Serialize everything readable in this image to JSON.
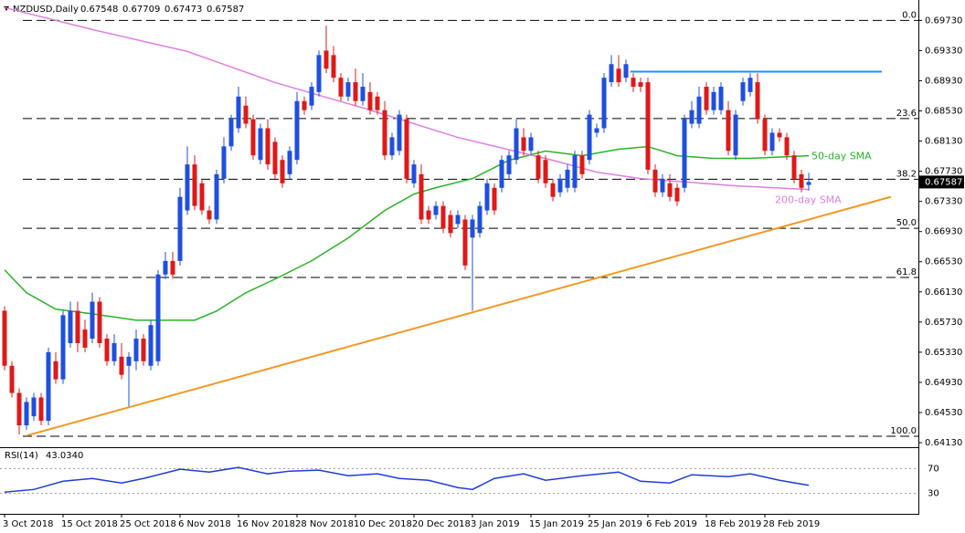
{
  "chart_data": {
    "type": "candlestick",
    "symbol": "NZDUSD,Daily",
    "up_color": "#1f4fe0",
    "down_color": "#e01818",
    "xlim": [
      -0.625,
      125
    ],
    "ylim": [
      0.6407,
      0.6994
    ],
    "xticks": [
      {
        "value": 0,
        "label": "3 Oct 2018"
      },
      {
        "value": 8,
        "label": "15 Oct 2018"
      },
      {
        "value": 16,
        "label": "25 Oct 2018"
      },
      {
        "value": 24,
        "label": "6 Nov 2018"
      },
      {
        "value": 32,
        "label": "16 Nov 2018"
      },
      {
        "value": 40,
        "label": "28 Nov 2018"
      },
      {
        "value": 48,
        "label": "10 Dec 2018"
      },
      {
        "value": 56,
        "label": "20 Dec 2018"
      },
      {
        "value": 64,
        "label": "3 Jan 2019"
      },
      {
        "value": 72,
        "label": "15 Jan 2019"
      },
      {
        "value": 80,
        "label": "25 Jan 2019"
      },
      {
        "value": 88,
        "label": "6 Feb 2019"
      },
      {
        "value": 96,
        "label": "18 Feb 2019"
      },
      {
        "value": 104,
        "label": "28 Feb 2019"
      }
    ],
    "yticks": [
      {
        "value": 0.6973,
        "label": "0.69730"
      },
      {
        "value": 0.6933,
        "label": "0.69330"
      },
      {
        "value": 0.6893,
        "label": "0.68930"
      },
      {
        "value": 0.6853,
        "label": "0.68530"
      },
      {
        "value": 0.6813,
        "label": "0.68130"
      },
      {
        "value": 0.6773,
        "label": "0.67730"
      },
      {
        "value": 0.6733,
        "label": "0.67330"
      },
      {
        "value": 0.6693,
        "label": "0.66930"
      },
      {
        "value": 0.6653,
        "label": "0.66530"
      },
      {
        "value": 0.6613,
        "label": "0.66130"
      },
      {
        "value": 0.6573,
        "label": "0.65730"
      },
      {
        "value": 0.6533,
        "label": "0.65330"
      },
      {
        "value": 0.6493,
        "label": "0.64930"
      },
      {
        "value": 0.6453,
        "label": "0.64530"
      },
      {
        "value": 0.6413,
        "label": "0.64130"
      }
    ],
    "candles": [
      [
        0.6588,
        0.6594,
        0.6509,
        0.6515
      ],
      [
        0.6515,
        0.6521,
        0.6473,
        0.6479
      ],
      [
        0.6479,
        0.6485,
        0.6424,
        0.6436
      ],
      [
        0.6436,
        0.6473,
        0.643,
        0.6467
      ],
      [
        0.6448,
        0.6479,
        0.6442,
        0.6473
      ],
      [
        0.6473,
        0.6479,
        0.6436,
        0.6442
      ],
      [
        0.6442,
        0.6539,
        0.6436,
        0.6533
      ],
      [
        0.6521,
        0.6533,
        0.6491,
        0.6497
      ],
      [
        0.6497,
        0.6588,
        0.6491,
        0.6582
      ],
      [
        0.6545,
        0.66,
        0.6539,
        0.6588
      ],
      [
        0.6588,
        0.66,
        0.6533,
        0.6545
      ],
      [
        0.6563,
        0.6576,
        0.6533,
        0.6539
      ],
      [
        0.6551,
        0.6612,
        0.6545,
        0.66
      ],
      [
        0.66,
        0.6606,
        0.6539,
        0.6545
      ],
      [
        0.6551,
        0.6557,
        0.6515,
        0.6521
      ],
      [
        0.6521,
        0.6557,
        0.6515,
        0.6545
      ],
      [
        0.6527,
        0.6545,
        0.6497,
        0.6503
      ],
      [
        0.6515,
        0.6533,
        0.6461,
        0.6527
      ],
      [
        0.6521,
        0.6563,
        0.6509,
        0.6551
      ],
      [
        0.6551,
        0.6557,
        0.6515,
        0.6521
      ],
      [
        0.6515,
        0.6576,
        0.6509,
        0.6569
      ],
      [
        0.6521,
        0.6642,
        0.6515,
        0.6636
      ],
      [
        0.6636,
        0.6666,
        0.663,
        0.6654
      ],
      [
        0.6654,
        0.6666,
        0.663,
        0.6636
      ],
      [
        0.6654,
        0.6751,
        0.6648,
        0.6739
      ],
      [
        0.6721,
        0.6806,
        0.6715,
        0.6782
      ],
      [
        0.6782,
        0.6794,
        0.6721,
        0.6727
      ],
      [
        0.6757,
        0.6763,
        0.6715,
        0.6721
      ],
      [
        0.6721,
        0.6727,
        0.6703,
        0.6709
      ],
      [
        0.6709,
        0.6775,
        0.6703,
        0.6769
      ],
      [
        0.6763,
        0.6818,
        0.6757,
        0.6806
      ],
      [
        0.6806,
        0.6848,
        0.68,
        0.6842
      ],
      [
        0.683,
        0.6885,
        0.6824,
        0.6872
      ],
      [
        0.686,
        0.6872,
        0.683,
        0.6836
      ],
      [
        0.6842,
        0.6848,
        0.6788,
        0.6794
      ],
      [
        0.6788,
        0.6836,
        0.6782,
        0.683
      ],
      [
        0.683,
        0.6842,
        0.6775,
        0.6782
      ],
      [
        0.6812,
        0.6818,
        0.6763,
        0.6769
      ],
      [
        0.6788,
        0.6794,
        0.6751,
        0.6757
      ],
      [
        0.6769,
        0.6806,
        0.6763,
        0.68
      ],
      [
        0.6788,
        0.6878,
        0.6782,
        0.6866
      ],
      [
        0.6866,
        0.6872,
        0.6848,
        0.6854
      ],
      [
        0.686,
        0.6891,
        0.6854,
        0.6885
      ],
      [
        0.6878,
        0.6933,
        0.6872,
        0.6927
      ],
      [
        0.6933,
        0.6966,
        0.6903,
        0.6909
      ],
      [
        0.6927,
        0.6939,
        0.6891,
        0.6897
      ],
      [
        0.6897,
        0.6903,
        0.6866,
        0.6872
      ],
      [
        0.6872,
        0.6897,
        0.6866,
        0.6891
      ],
      [
        0.6891,
        0.6909,
        0.686,
        0.6866
      ],
      [
        0.6866,
        0.6903,
        0.686,
        0.6885
      ],
      [
        0.6878,
        0.6891,
        0.6848,
        0.6854
      ],
      [
        0.6872,
        0.6878,
        0.6848,
        0.6854
      ],
      [
        0.6854,
        0.6866,
        0.6788,
        0.6794
      ],
      [
        0.6794,
        0.6824,
        0.6788,
        0.6818
      ],
      [
        0.68,
        0.6854,
        0.6794,
        0.6848
      ],
      [
        0.6842,
        0.6848,
        0.6757,
        0.6763
      ],
      [
        0.6757,
        0.6788,
        0.6751,
        0.6782
      ],
      [
        0.6769,
        0.6782,
        0.6703,
        0.6709
      ],
      [
        0.6721,
        0.6727,
        0.6703,
        0.6709
      ],
      [
        0.6715,
        0.6733,
        0.6709,
        0.6727
      ],
      [
        0.6727,
        0.6733,
        0.6691,
        0.6697
      ],
      [
        0.6715,
        0.6721,
        0.6685,
        0.6691
      ],
      [
        0.6703,
        0.6721,
        0.6697,
        0.6715
      ],
      [
        0.6709,
        0.6715,
        0.6642,
        0.6648
      ],
      [
        0.6685,
        0.6715,
        0.6588,
        0.6709
      ],
      [
        0.6691,
        0.6733,
        0.6685,
        0.6727
      ],
      [
        0.6721,
        0.6763,
        0.6715,
        0.6757
      ],
      [
        0.6751,
        0.6757,
        0.6715,
        0.6721
      ],
      [
        0.6751,
        0.6794,
        0.6745,
        0.6788
      ],
      [
        0.6769,
        0.68,
        0.6763,
        0.6794
      ],
      [
        0.6788,
        0.6842,
        0.6782,
        0.683
      ],
      [
        0.6818,
        0.683,
        0.6794,
        0.68
      ],
      [
        0.68,
        0.6824,
        0.6794,
        0.6818
      ],
      [
        0.6794,
        0.68,
        0.6757,
        0.6763
      ],
      [
        0.6788,
        0.6794,
        0.6751,
        0.6757
      ],
      [
        0.6757,
        0.6763,
        0.6733,
        0.6739
      ],
      [
        0.6745,
        0.6769,
        0.6739,
        0.6763
      ],
      [
        0.6751,
        0.6782,
        0.6745,
        0.6775
      ],
      [
        0.6751,
        0.68,
        0.6745,
        0.6794
      ],
      [
        0.6794,
        0.68,
        0.6763,
        0.6769
      ],
      [
        0.6788,
        0.6854,
        0.6782,
        0.6848
      ],
      [
        0.6824,
        0.6836,
        0.6818,
        0.683
      ],
      [
        0.683,
        0.6903,
        0.6824,
        0.6897
      ],
      [
        0.6891,
        0.6927,
        0.6885,
        0.6915
      ],
      [
        0.6909,
        0.6927,
        0.6885,
        0.6891
      ],
      [
        0.6897,
        0.6921,
        0.6891,
        0.6915
      ],
      [
        0.6897,
        0.6903,
        0.6878,
        0.6885
      ],
      [
        0.6891,
        0.6897,
        0.6878,
        0.6885
      ],
      [
        0.6891,
        0.6897,
        0.6769,
        0.6775
      ],
      [
        0.6775,
        0.6782,
        0.6739,
        0.6745
      ],
      [
        0.6745,
        0.6769,
        0.6739,
        0.6763
      ],
      [
        0.6757,
        0.6769,
        0.6733,
        0.6739
      ],
      [
        0.6751,
        0.6757,
        0.6727,
        0.6733
      ],
      [
        0.6751,
        0.6848,
        0.6745,
        0.6842
      ],
      [
        0.6836,
        0.6866,
        0.683,
        0.6854
      ],
      [
        0.6836,
        0.6885,
        0.683,
        0.6872
      ],
      [
        0.6885,
        0.6891,
        0.6848,
        0.6854
      ],
      [
        0.6854,
        0.6885,
        0.6848,
        0.6878
      ],
      [
        0.6854,
        0.6891,
        0.6848,
        0.6885
      ],
      [
        0.6854,
        0.6866,
        0.6794,
        0.68
      ],
      [
        0.6794,
        0.6854,
        0.6788,
        0.6848
      ],
      [
        0.6866,
        0.6897,
        0.686,
        0.6891
      ],
      [
        0.6878,
        0.6903,
        0.6872,
        0.6897
      ],
      [
        0.6891,
        0.6903,
        0.6836,
        0.6842
      ],
      [
        0.6842,
        0.6848,
        0.6794,
        0.68
      ],
      [
        0.68,
        0.683,
        0.6794,
        0.6824
      ],
      [
        0.6824,
        0.683,
        0.6812,
        0.6818
      ],
      [
        0.6818,
        0.6824,
        0.6788,
        0.6794
      ],
      [
        0.6794,
        0.68,
        0.6757,
        0.6763
      ],
      [
        0.6769,
        0.6775,
        0.6745,
        0.6751
      ],
      [
        0.67548,
        0.67709,
        0.67473,
        0.67587
      ]
    ],
    "series": [
      {
        "name": "50-day SMA",
        "color": "#27b427",
        "x": [
          0,
          3,
          7,
          12,
          18,
          26,
          29,
          33,
          37,
          42,
          47,
          52,
          56,
          59,
          64,
          69,
          74,
          79,
          84,
          88,
          92,
          97,
          102,
          110
        ],
        "values": [
          0.66421,
          0.66118,
          0.659,
          0.65839,
          0.65754,
          0.65754,
          0.65876,
          0.66118,
          0.663,
          0.66542,
          0.66845,
          0.67209,
          0.67427,
          0.67512,
          0.67633,
          0.67875,
          0.67997,
          0.67936,
          0.68021,
          0.68057,
          0.67936,
          0.679,
          0.679,
          0.67936
        ]
      },
      {
        "name": "200-day SMA",
        "color": "#e07fe0",
        "x": [
          0,
          12,
          25,
          37,
          50,
          62,
          75,
          81,
          87,
          100,
          110
        ],
        "values": [
          0.699,
          0.69609,
          0.69318,
          0.68906,
          0.68542,
          0.68178,
          0.67875,
          0.67718,
          0.67633,
          0.67536,
          0.67488
        ]
      }
    ],
    "lines": [
      {
        "color": "#1f8fff",
        "x": [
          85.6,
          120
        ],
        "values": [
          0.6905,
          0.6905
        ]
      },
      {
        "color": "#f5961e",
        "x": [
          3.1,
          121.25
        ],
        "values": [
          0.64227,
          0.67391
        ]
      }
    ],
    "fib": {
      "high": 0.6973,
      "low": 0.64215,
      "levels": [
        {
          "value": 0,
          "label": "0.0"
        },
        {
          "value": 23.6,
          "label": "23.6"
        },
        {
          "value": 38.2,
          "label": "38.2"
        },
        {
          "value": 50,
          "label": "50.0"
        },
        {
          "value": 61.8,
          "label": "61.8"
        },
        {
          "value": 100,
          "label": "100.0"
        }
      ]
    },
    "rsi": {
      "title": "RSI(14)",
      "current": {
        "value": 43.034,
        "label": "43.0340"
      },
      "color": "#1e3cdc",
      "ylim": [
        0,
        100
      ],
      "yticks": [
        70,
        30
      ],
      "x": [
        0,
        4,
        8,
        12,
        16,
        19,
        24,
        28,
        32,
        36,
        39,
        43,
        47,
        51,
        54,
        58,
        62,
        64,
        67,
        71,
        74,
        79,
        84,
        87,
        91,
        94,
        99,
        102,
        106,
        110
      ],
      "values": [
        31.9,
        36.3,
        49.6,
        54.1,
        46.7,
        54.1,
        68.9,
        64.4,
        71.9,
        61.5,
        65.9,
        67.4,
        58.5,
        61.5,
        54.1,
        51.1,
        39.3,
        36.3,
        54.1,
        61.5,
        51.1,
        58.5,
        64.4,
        49.6,
        46.7,
        60,
        57,
        61.5,
        51.1,
        43.034
      ]
    }
  }
}
